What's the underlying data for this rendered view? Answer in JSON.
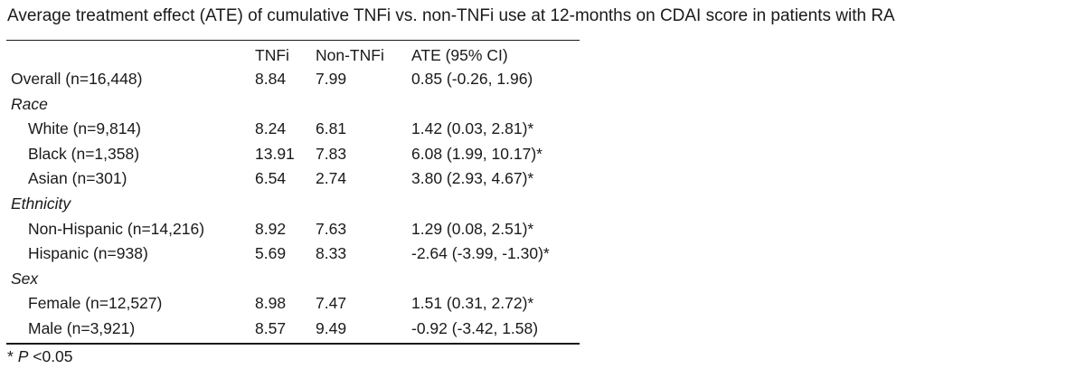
{
  "title": "Average treatment effect (ATE) of cumulative TNFi vs. non-TNFi use at 12-months on CDAI score in patients with RA",
  "headers": {
    "label": "",
    "tnfi": "TNFi",
    "non_tnfi": "Non-TNFi",
    "ate": "ATE (95% CI)"
  },
  "rows": {
    "overall": {
      "label": "Overall (n=16,448)",
      "tnfi": "8.84",
      "non_tnfi": "7.99",
      "ate": "0.85 (-0.26, 1.96)"
    },
    "race": {
      "label": "Race"
    },
    "white": {
      "label": "White (n=9,814)",
      "tnfi": "8.24",
      "non_tnfi": "6.81",
      "ate": "1.42 (0.03, 2.81)*"
    },
    "black": {
      "label": "Black (n=1,358)",
      "tnfi": "13.91",
      "non_tnfi": "7.83",
      "ate": "6.08 (1.99, 10.17)*"
    },
    "asian": {
      "label": "Asian (n=301)",
      "tnfi": "6.54",
      "non_tnfi": "2.74",
      "ate": "3.80 (2.93, 4.67)*"
    },
    "ethnicity": {
      "label": "Ethnicity"
    },
    "non_hispanic": {
      "label": "Non-Hispanic (n=14,216)",
      "tnfi": "8.92",
      "non_tnfi": "7.63",
      "ate": "1.29 (0.08, 2.51)*"
    },
    "hispanic": {
      "label": "Hispanic (n=938)",
      "tnfi": "5.69",
      "non_tnfi": "8.33",
      "ate": "-2.64 (-3.99, -1.30)*"
    },
    "sex": {
      "label": "Sex"
    },
    "female": {
      "label": "Female (n=12,527)",
      "tnfi": "8.98",
      "non_tnfi": "7.47",
      "ate": "1.51 (0.31, 2.72)*"
    },
    "male": {
      "label": "Male (n=3,921)",
      "tnfi": "8.57",
      "non_tnfi": "9.49",
      "ate": "-0.92 (-3.42, 1.58)"
    }
  },
  "footnote": {
    "star": "* ",
    "p": "P",
    "rest": " <0.05"
  }
}
